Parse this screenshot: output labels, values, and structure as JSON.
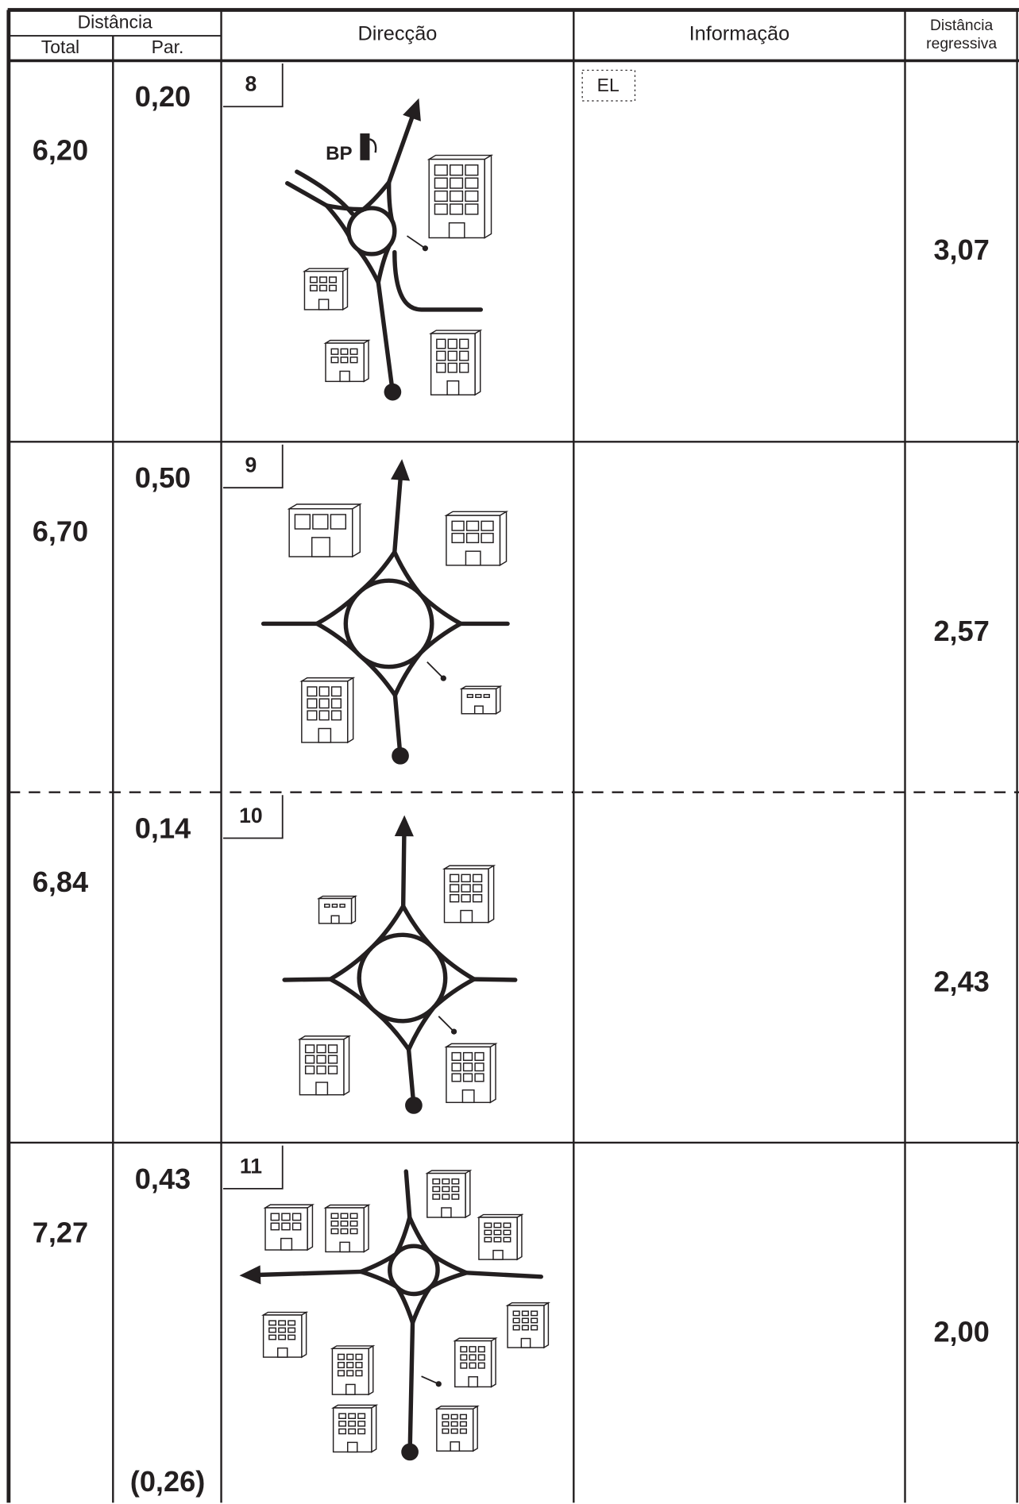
{
  "header": {
    "distance": "Distância",
    "total": "Total",
    "partial": "Par.",
    "direction": "Direcção",
    "information": "Informação",
    "regressive": [
      "Distância",
      "regressiva"
    ]
  },
  "rows": [
    {
      "total": "6,20",
      "partial": "0,20",
      "step": "8",
      "info": "EL",
      "station": "BP",
      "regressive": "3,07"
    },
    {
      "total": "6,70",
      "partial": "0,50",
      "step": "9",
      "regressive": "2,57"
    },
    {
      "total": "6,84",
      "partial": "0,14",
      "step": "10",
      "regressive": "2,43"
    },
    {
      "total": "7,27",
      "partial": "0,43",
      "step": "11",
      "regressive": "2,00",
      "partial_note": "(0,26)"
    }
  ]
}
